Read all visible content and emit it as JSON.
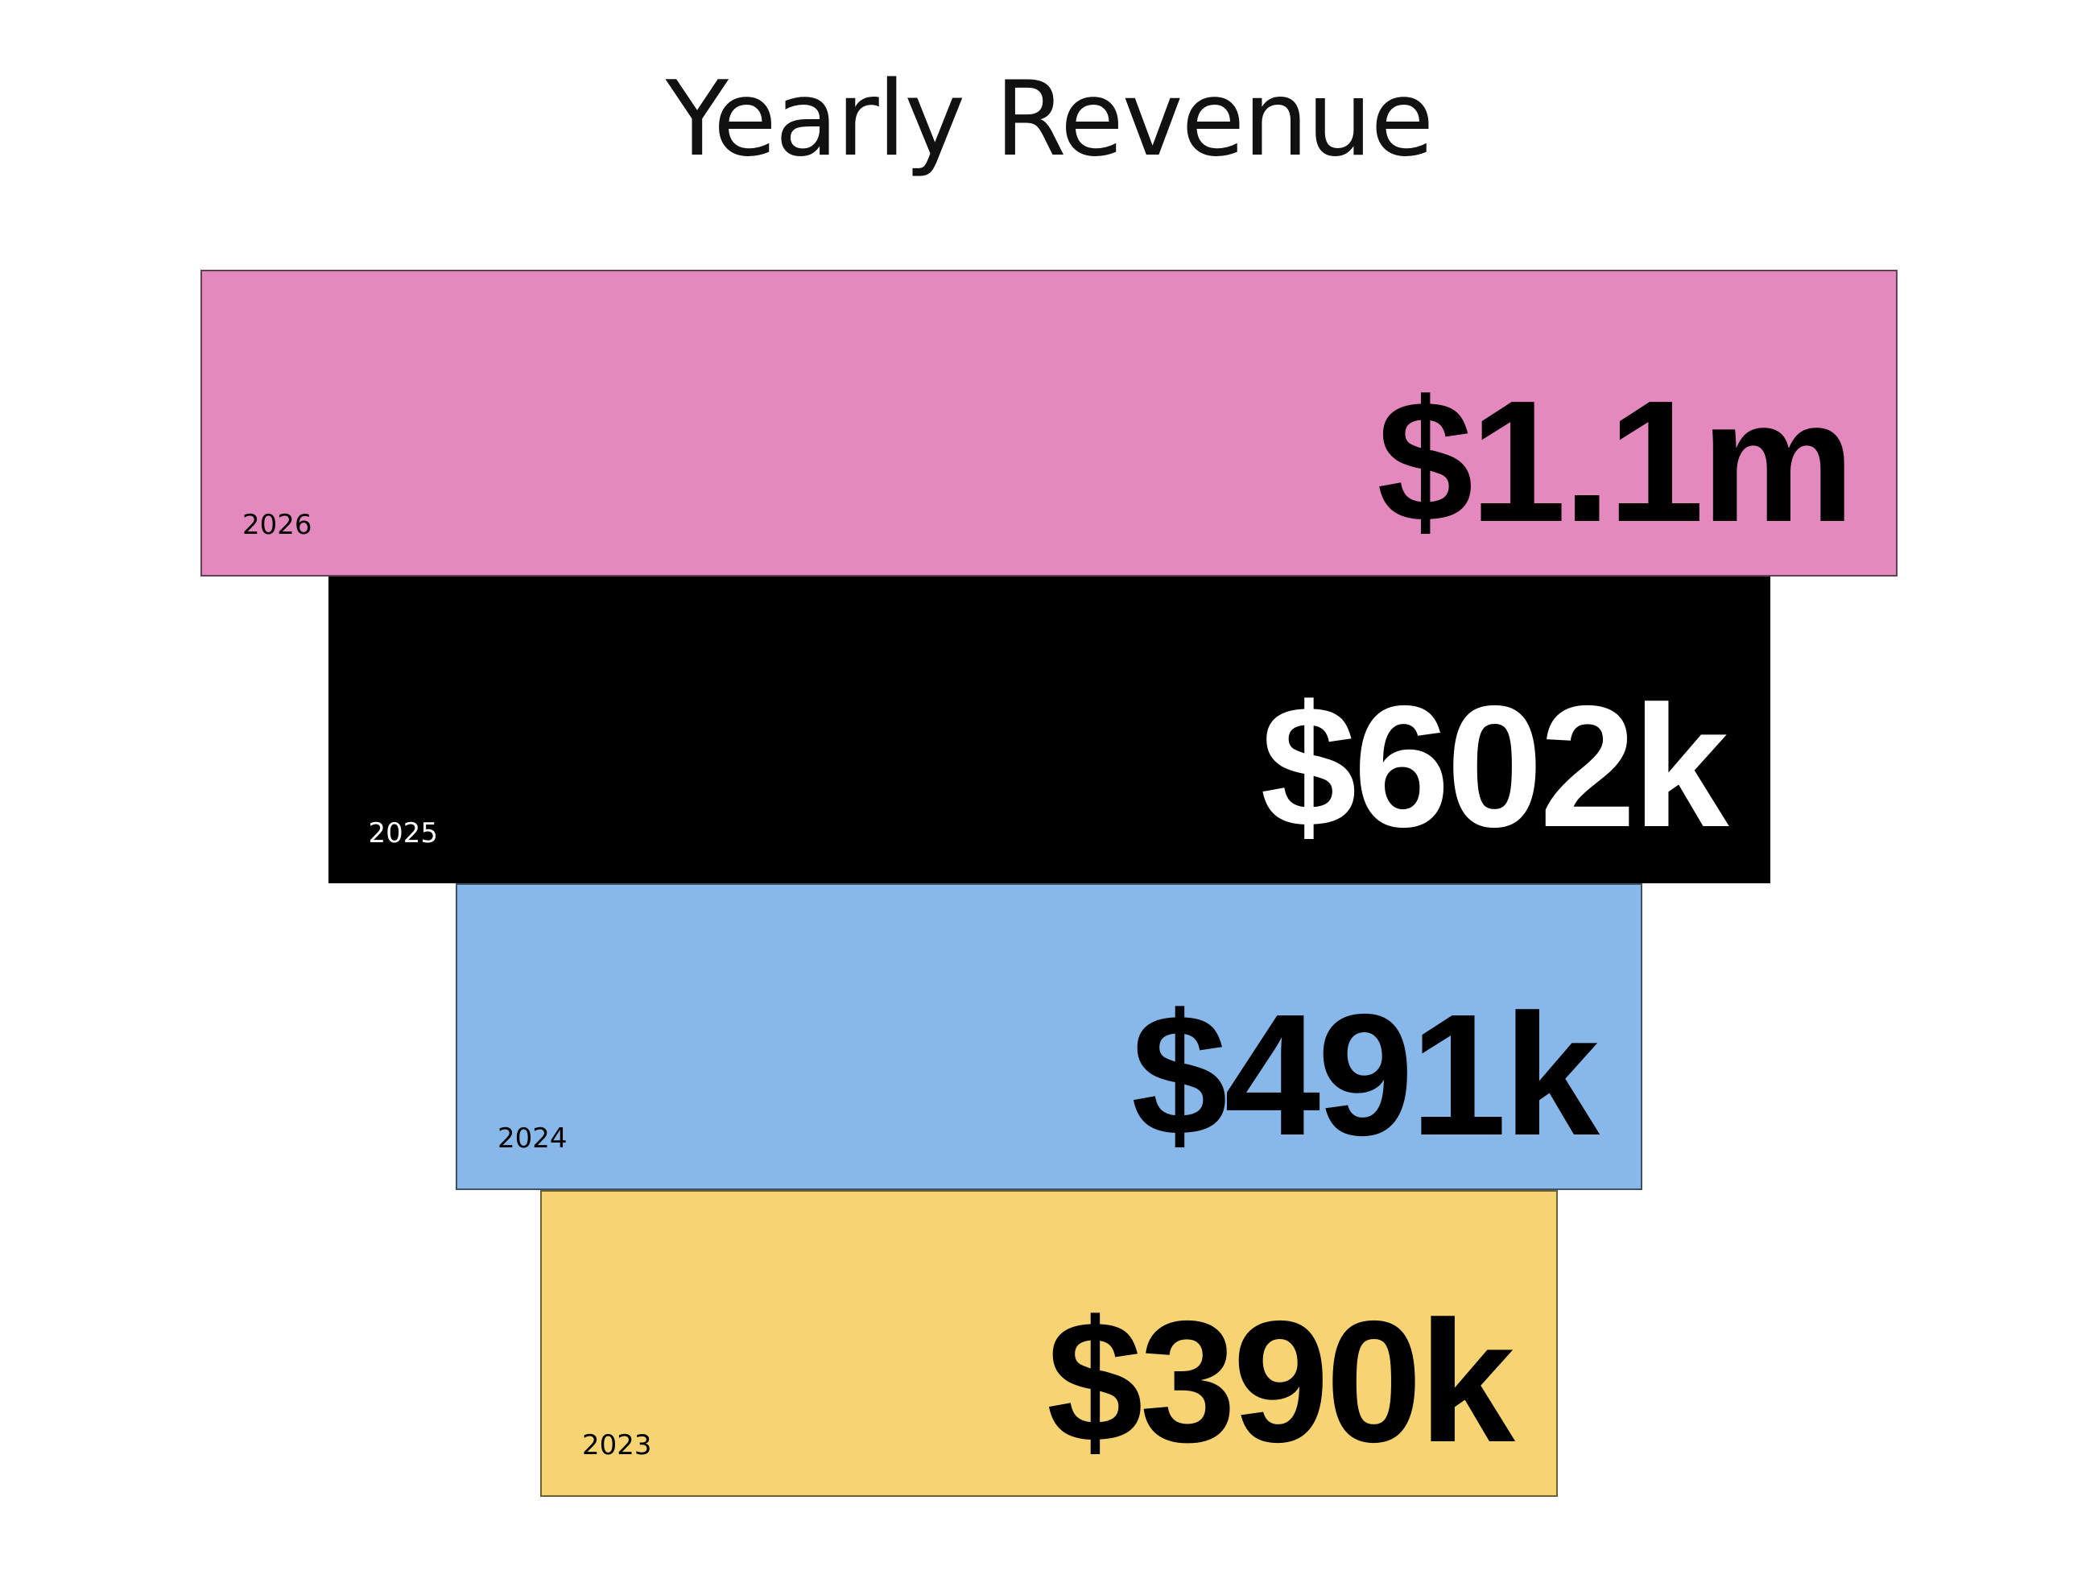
{
  "chart_data": {
    "type": "bar",
    "title": "Yearly Revenue",
    "categories": [
      "2026",
      "2025",
      "2024",
      "2023"
    ],
    "values": [
      1100000,
      602000,
      491000,
      390000
    ],
    "value_labels": [
      "$1.1m",
      "$602k",
      "$491k",
      "$390k"
    ],
    "colors": [
      "#e389be",
      "#000000",
      "#88b7e9",
      "#f6d474"
    ],
    "label_colors": [
      "#000000",
      "#ffffff",
      "#000000",
      "#000000"
    ],
    "orientation": "horizontal",
    "alignment": "centered",
    "legend": "none",
    "grid": false
  }
}
